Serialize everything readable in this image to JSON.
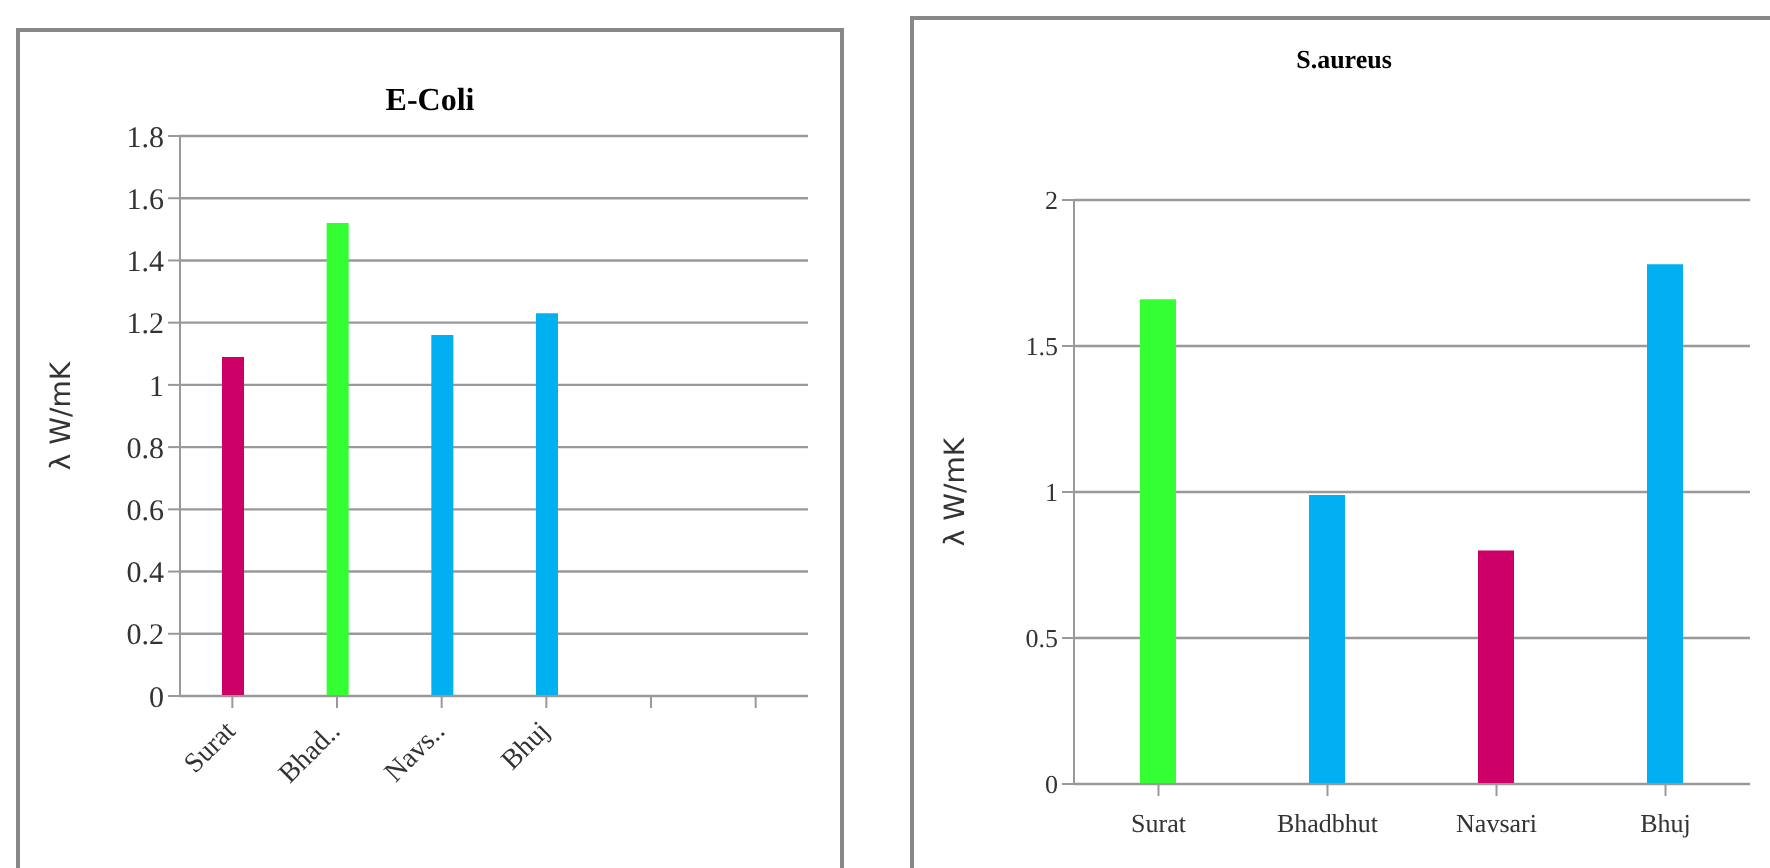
{
  "chart_data": [
    {
      "type": "bar",
      "title": "E-Coli",
      "ylabel": "λ W/mK",
      "categories": [
        "Surat",
        "Bhad..",
        "Navs..",
        "Bhuj",
        null,
        null
      ],
      "values": [
        1.09,
        1.52,
        1.16,
        1.23,
        null,
        null
      ],
      "colors": [
        "#cc0066",
        "#33ff33",
        "#00b0f0",
        "#00b0f0",
        null,
        null
      ],
      "ylim": [
        0,
        1.8
      ],
      "yticks": [
        0,
        0.2,
        0.4,
        0.6,
        0.8,
        1,
        1.2,
        1.4,
        1.6,
        1.8
      ],
      "grid": "y"
    },
    {
      "type": "bar",
      "title": "S.aureus",
      "ylabel": "λ W/mK",
      "categories": [
        "Surat",
        "Bhadbhut",
        "Navsari",
        "Bhuj"
      ],
      "values": [
        1.66,
        0.99,
        0.8,
        1.78
      ],
      "colors": [
        "#33ff33",
        "#00b0f0",
        "#cc0066",
        "#00b0f0"
      ],
      "ylim": [
        0,
        2
      ],
      "yticks": [
        0,
        0.5,
        1,
        1.5,
        2
      ],
      "grid": "y"
    }
  ]
}
